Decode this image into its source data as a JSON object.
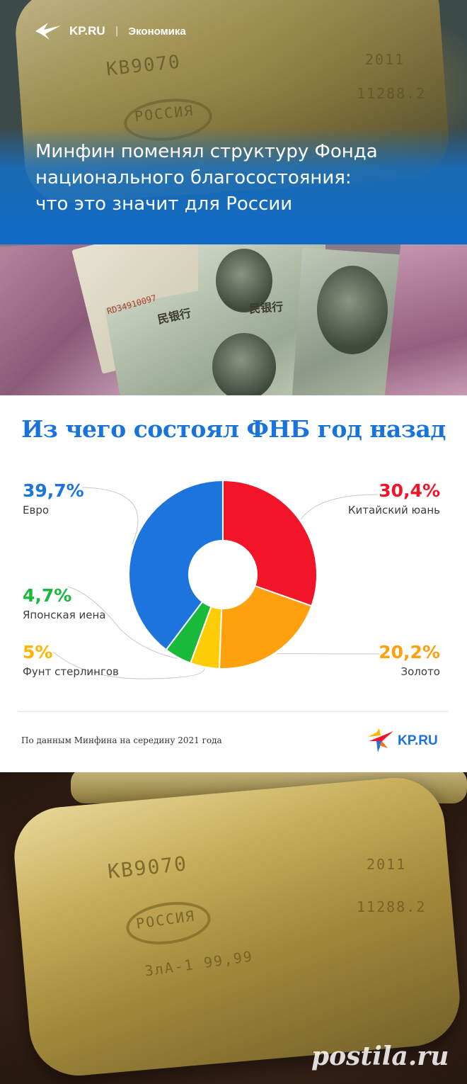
{
  "header": {
    "logo": "KP.RU",
    "separator": "|",
    "section": "Экономика",
    "headline_lines": [
      "Минфин поменял структуру Фонда",
      "национального благосостояния:",
      "что это значит для России"
    ]
  },
  "hero_engraving": {
    "code": "KB9070",
    "country": "РОССИЯ",
    "year": "2011",
    "number": "11288.2"
  },
  "banknotes": {
    "serial": "RD34910097",
    "hanzi": "民银行"
  },
  "chart_data": {
    "type": "pie",
    "variant": "donut",
    "title": "Из чего состоял ФНБ год назад",
    "slices": [
      {
        "label": "Китайский юань",
        "value": 30.4,
        "value_text": "30,4%",
        "color": "#f2152a"
      },
      {
        "label": "Золото",
        "value": 20.2,
        "value_text": "20,2%",
        "color": "#ffa00f"
      },
      {
        "label": "Фунт стерлингов",
        "value": 5.0,
        "value_text": "5%",
        "color": "#ffcd05"
      },
      {
        "label": "Японская иена",
        "value": 4.7,
        "value_text": "4,7%",
        "color": "#19b93c"
      },
      {
        "label": "Евро",
        "value": 39.7,
        "value_text": "39,7%",
        "color": "#1c74dc"
      }
    ],
    "source": "По данным Минфина на середину 2021 года"
  },
  "footer_brand": {
    "logo": "KP.RU"
  },
  "bottom_engraving": {
    "code": "KB9070",
    "country": "РОССИЯ",
    "year": "2011",
    "number": "11288.2",
    "assay": "ЗлА-1 99,99"
  },
  "watermark": "postila.ru"
}
